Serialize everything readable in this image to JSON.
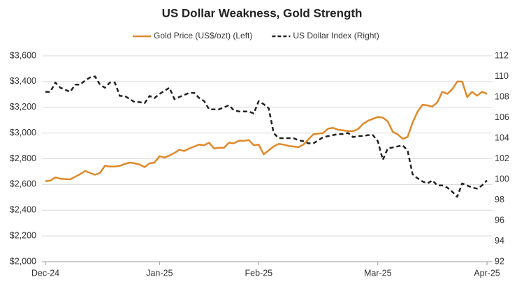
{
  "chart_data": {
    "type": "line",
    "title": "US Dollar Weakness, Gold Strength",
    "categories": [
      "Dec-24",
      null,
      null,
      null,
      null,
      null,
      null,
      null,
      null,
      null,
      null,
      null,
      null,
      null,
      null,
      null,
      null,
      null,
      null,
      null,
      null,
      null,
      null,
      "Jan-25",
      null,
      null,
      null,
      null,
      null,
      null,
      null,
      null,
      null,
      null,
      null,
      null,
      null,
      null,
      null,
      null,
      null,
      null,
      null,
      "Feb-25",
      null,
      null,
      null,
      null,
      null,
      null,
      null,
      null,
      null,
      null,
      null,
      null,
      null,
      null,
      null,
      null,
      null,
      null,
      null,
      null,
      null,
      null,
      null,
      "Mar-25",
      null,
      null,
      null,
      null,
      null,
      null,
      null,
      null,
      null,
      null,
      null,
      null,
      null,
      null,
      null,
      null,
      null,
      null,
      null,
      null,
      null,
      "Apr-25"
    ],
    "series": [
      {
        "name": "Gold Price (US$/ozt) (Left)",
        "color": "#e0892b",
        "dash": false,
        "values": [
          2625,
          2630,
          2655,
          2645,
          2642,
          2640,
          2660,
          2680,
          2705,
          2690,
          2675,
          2690,
          2745,
          2740,
          2740,
          2745,
          2760,
          2770,
          2765,
          2755,
          2735,
          2765,
          2770,
          2820,
          2810,
          2825,
          2845,
          2870,
          2860,
          2880,
          2895,
          2910,
          2905,
          2925,
          2880,
          2885,
          2885,
          2925,
          2920,
          2940,
          2940,
          2945,
          2905,
          2910,
          2835,
          2865,
          2895,
          2915,
          2910,
          2900,
          2895,
          2890,
          2910,
          2950,
          2990,
          2995,
          3000,
          3035,
          3040,
          3025,
          3020,
          3015,
          3015,
          3030,
          3070,
          3095,
          3110,
          3125,
          3120,
          3090,
          3010,
          2990,
          2955,
          2970,
          3080,
          3165,
          3220,
          3215,
          3205,
          3240,
          3320,
          3305,
          3340,
          3400,
          3400,
          3280,
          3320,
          3290,
          3320,
          3305
        ]
      },
      {
        "name": "US Dollar Index (Right)",
        "color": "#222222",
        "dash": true,
        "axis": "y2",
        "values": [
          108.5,
          108.5,
          109.4,
          108.9,
          108.7,
          108.5,
          109.2,
          109.2,
          109.6,
          109.9,
          110.0,
          109.2,
          108.9,
          109.4,
          109.4,
          108.1,
          108.1,
          107.8,
          107.5,
          107.5,
          107.4,
          108.1,
          107.9,
          108.3,
          108.6,
          108.9,
          107.8,
          108.0,
          108.2,
          108.4,
          108.4,
          107.9,
          107.6,
          106.8,
          106.8,
          106.8,
          107.0,
          107.2,
          106.7,
          106.6,
          106.6,
          106.6,
          106.4,
          107.6,
          107.3,
          106.9,
          104.5,
          104.0,
          104.0,
          104.0,
          104.0,
          103.8,
          103.7,
          103.5,
          103.5,
          103.8,
          104.1,
          104.2,
          104.3,
          104.4,
          104.4,
          104.5,
          104.1,
          104.2,
          104.2,
          104.3,
          104.3,
          103.7,
          101.9,
          103.0,
          103.1,
          103.2,
          103.3,
          102.8,
          100.5,
          100.1,
          99.8,
          99.6,
          99.9,
          99.4,
          99.4,
          99.2,
          98.8,
          98.3,
          99.6,
          99.4,
          99.2,
          99.1,
          99.4,
          99.9
        ]
      }
    ],
    "ylim": [
      2000,
      3600
    ],
    "yticks": [
      {
        "value": 2000,
        "label": "$2,000"
      },
      {
        "value": 2200,
        "label": "$2,200"
      },
      {
        "value": 2400,
        "label": "$2,400"
      },
      {
        "value": 2600,
        "label": "$2,600"
      },
      {
        "value": 2800,
        "label": "$2,800"
      },
      {
        "value": 3000,
        "label": "$3,000"
      },
      {
        "value": 3200,
        "label": "$3,200"
      },
      {
        "value": 3400,
        "label": "$3,400"
      },
      {
        "value": 3600,
        "label": "$3,600"
      }
    ],
    "y2lim": [
      92,
      112
    ],
    "y2ticks": [
      92,
      94,
      96,
      98,
      100,
      102,
      104,
      106,
      108,
      110,
      112
    ],
    "grid": true,
    "legend": "top"
  }
}
